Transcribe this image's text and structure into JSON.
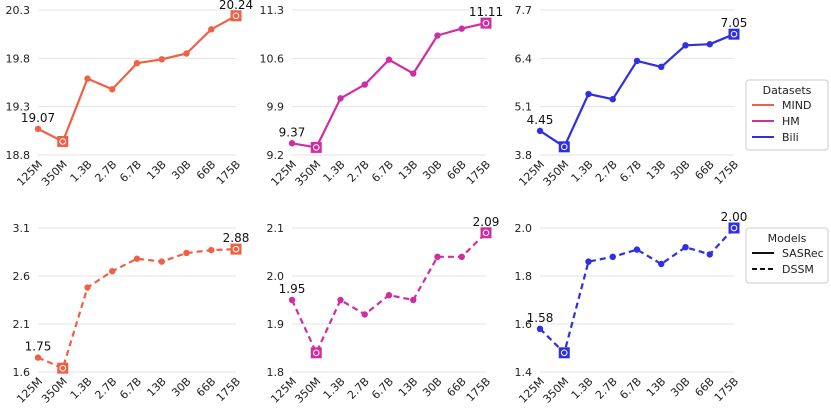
{
  "colors": {
    "MIND": "#ee6145",
    "HM": "#cf2ea3",
    "Bili": "#2f2fe3",
    "grid": "#e3e3e3",
    "text": "#222222"
  },
  "legends": [
    {
      "title": "Datasets",
      "items": [
        {
          "label": "MIND",
          "color": "#ee6145",
          "style": "solid"
        },
        {
          "label": "HM",
          "color": "#cf2ea3",
          "style": "solid"
        },
        {
          "label": "Bili",
          "color": "#2f2fe3",
          "style": "solid"
        }
      ]
    },
    {
      "title": "Models",
      "items": [
        {
          "label": "SASRec",
          "color": "#111111",
          "style": "solid"
        },
        {
          "label": "DSSM",
          "color": "#111111",
          "style": "dashed"
        }
      ]
    }
  ],
  "chart_data": [
    {
      "type": "line",
      "dataset": "MIND",
      "model": "SASRec",
      "style": "solid",
      "categories": [
        "125M",
        "350M",
        "1.3B",
        "2.7B",
        "6.7B",
        "13B",
        "30B",
        "66B",
        "175B"
      ],
      "values": [
        19.07,
        18.94,
        19.59,
        19.48,
        19.75,
        19.79,
        19.85,
        20.1,
        20.24
      ],
      "yticks": [
        "18.8",
        "19.3",
        "19.8",
        "20.3"
      ],
      "ylim": [
        18.8,
        20.3
      ],
      "annotations": [
        "19.07",
        "20.24"
      ]
    },
    {
      "type": "line",
      "dataset": "HM",
      "model": "SASRec",
      "style": "solid",
      "categories": [
        "125M",
        "350M",
        "1.3B",
        "2.7B",
        "6.7B",
        "13B",
        "30B",
        "66B",
        "175B"
      ],
      "values": [
        9.37,
        9.31,
        10.02,
        10.22,
        10.58,
        10.38,
        10.93,
        11.03,
        11.11
      ],
      "yticks": [
        "9.2",
        "9.9",
        "10.6",
        "11.3"
      ],
      "ylim": [
        9.2,
        11.3
      ],
      "annotations": [
        "9.37",
        "11.11"
      ]
    },
    {
      "type": "line",
      "dataset": "Bili",
      "model": "SASRec",
      "style": "solid",
      "categories": [
        "125M",
        "350M",
        "1.3B",
        "2.7B",
        "6.7B",
        "13B",
        "30B",
        "66B",
        "175B"
      ],
      "values": [
        4.45,
        4.02,
        5.44,
        5.3,
        6.33,
        6.17,
        6.75,
        6.78,
        7.05
      ],
      "yticks": [
        "3.8",
        "5.1",
        "6.4",
        "7.7"
      ],
      "ylim": [
        3.8,
        7.7
      ],
      "annotations": [
        "4.45",
        "7.05"
      ]
    },
    {
      "type": "line",
      "dataset": "MIND",
      "model": "DSSM",
      "style": "dashed",
      "categories": [
        "125M",
        "350M",
        "1.3B",
        "2.7B",
        "6.7B",
        "13B",
        "30B",
        "66B",
        "175B"
      ],
      "values": [
        1.75,
        1.64,
        2.48,
        2.65,
        2.78,
        2.75,
        2.84,
        2.87,
        2.88
      ],
      "yticks": [
        "1.6",
        "2.1",
        "2.6",
        "3.1"
      ],
      "ylim": [
        1.6,
        3.1
      ],
      "annotations": [
        "1.75",
        "2.88"
      ]
    },
    {
      "type": "line",
      "dataset": "HM",
      "model": "DSSM",
      "style": "dashed",
      "categories": [
        "125M",
        "350M",
        "1.3B",
        "2.7B",
        "6.7B",
        "13B",
        "30B",
        "66B",
        "175B"
      ],
      "values": [
        1.95,
        1.84,
        1.95,
        1.92,
        1.96,
        1.95,
        2.04,
        2.04,
        2.09
      ],
      "yticks": [
        "1.8",
        "1.9",
        "2.0",
        "2.1"
      ],
      "ylim": [
        1.8,
        2.1
      ],
      "annotations": [
        "1.95",
        "2.09"
      ]
    },
    {
      "type": "line",
      "dataset": "Bili",
      "model": "DSSM",
      "style": "dashed",
      "categories": [
        "125M",
        "350M",
        "1.3B",
        "2.7B",
        "6.7B",
        "13B",
        "30B",
        "66B",
        "175B"
      ],
      "values": [
        1.58,
        1.48,
        1.86,
        1.88,
        1.91,
        1.85,
        1.92,
        1.89,
        2.0
      ],
      "yticks": [
        "1.4",
        "1.6",
        "1.8",
        "2.0"
      ],
      "ylim": [
        1.4,
        2.0
      ],
      "annotations": [
        "1.58",
        "2.00"
      ]
    }
  ]
}
